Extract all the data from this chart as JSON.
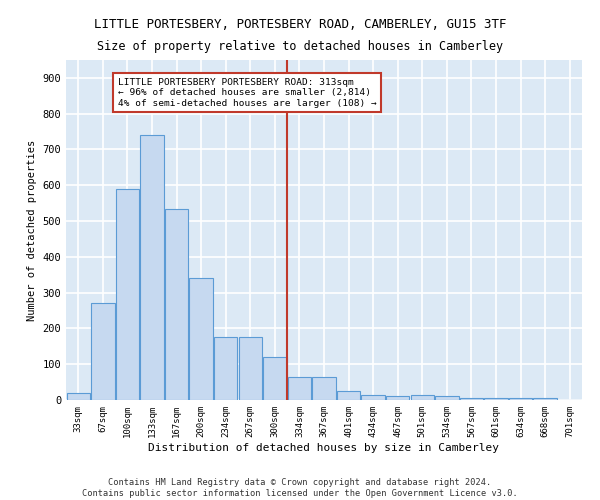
{
  "title": "LITTLE PORTESBERY, PORTESBERY ROAD, CAMBERLEY, GU15 3TF",
  "subtitle": "Size of property relative to detached houses in Camberley",
  "xlabel": "Distribution of detached houses by size in Camberley",
  "ylabel": "Number of detached properties",
  "bar_values": [
    20,
    270,
    590,
    740,
    535,
    340,
    175,
    175,
    120,
    65,
    65,
    25,
    15,
    10,
    15,
    10,
    5,
    5,
    5,
    5,
    0
  ],
  "categories": [
    "33sqm",
    "67sqm",
    "100sqm",
    "133sqm",
    "167sqm",
    "200sqm",
    "234sqm",
    "267sqm",
    "300sqm",
    "334sqm",
    "367sqm",
    "401sqm",
    "434sqm",
    "467sqm",
    "501sqm",
    "534sqm",
    "567sqm",
    "601sqm",
    "634sqm",
    "668sqm",
    "701sqm"
  ],
  "bar_color": "#c6d9f0",
  "bar_edge_color": "#5b9bd5",
  "vline_x": 8.5,
  "vline_color": "#c0392b",
  "annotation_text": "LITTLE PORTESBERY PORTESBERY ROAD: 313sqm\n← 96% of detached houses are smaller (2,814)\n4% of semi-detached houses are larger (108) →",
  "annotation_box_color": "#c0392b",
  "annotation_text_color": "#000000",
  "ylim": [
    0,
    950
  ],
  "yticks": [
    0,
    100,
    200,
    300,
    400,
    500,
    600,
    700,
    800,
    900
  ],
  "background_color": "#dce9f5",
  "grid_color": "#ffffff",
  "footer_text": "Contains HM Land Registry data © Crown copyright and database right 2024.\nContains public sector information licensed under the Open Government Licence v3.0.",
  "font_family": "monospace"
}
